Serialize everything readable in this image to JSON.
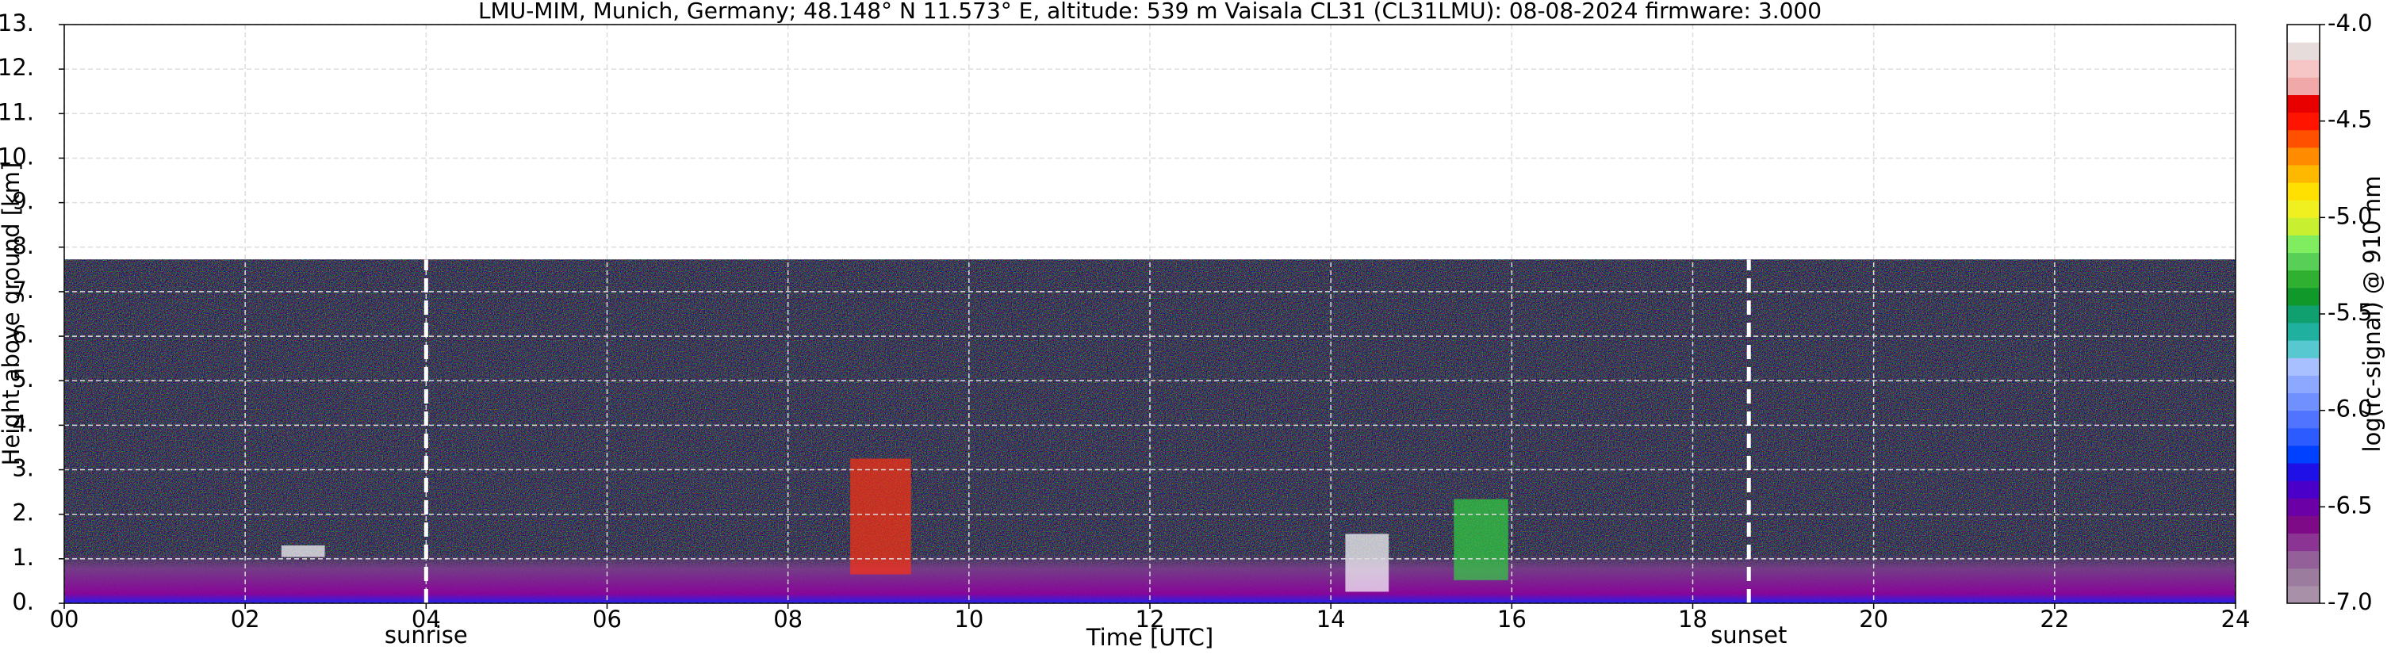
{
  "chart_data": {
    "type": "heatmap",
    "title": "LMU-MIM, Munich, Germany; 48.148° N 11.573° E, altitude: 539 m    Vaisala CL31 (CL31LMU): 08-08-2024    firmware: 3.000",
    "x_label": "Time [UTC]",
    "y_label": "Height above ground [km]",
    "xlim": [
      0,
      24
    ],
    "xticks": [
      {
        "value": 0,
        "label": "00"
      },
      {
        "value": 2,
        "label": "02"
      },
      {
        "value": 4,
        "label": "04"
      },
      {
        "value": 6,
        "label": "06"
      },
      {
        "value": 8,
        "label": "08"
      },
      {
        "value": 10,
        "label": "10"
      },
      {
        "value": 12,
        "label": "12"
      },
      {
        "value": 14,
        "label": "14"
      },
      {
        "value": 16,
        "label": "16"
      },
      {
        "value": 18,
        "label": "18"
      },
      {
        "value": 20,
        "label": "20"
      },
      {
        "value": 22,
        "label": "22"
      },
      {
        "value": 24,
        "label": "24"
      }
    ],
    "ylim": [
      0,
      13
    ],
    "yticks": [
      {
        "value": 0,
        "label": "0."
      },
      {
        "value": 1,
        "label": "1."
      },
      {
        "value": 2,
        "label": "2."
      },
      {
        "value": 3,
        "label": "3."
      },
      {
        "value": 4,
        "label": "4."
      },
      {
        "value": 5,
        "label": "5."
      },
      {
        "value": 6,
        "label": "6."
      },
      {
        "value": 7,
        "label": "7."
      },
      {
        "value": 8,
        "label": "8."
      },
      {
        "value": 9,
        "label": "9."
      },
      {
        "value": 10,
        "label": "10."
      },
      {
        "value": 11,
        "label": "11."
      },
      {
        "value": 12,
        "label": "12."
      },
      {
        "value": 13,
        "label": "13."
      }
    ],
    "grid": true,
    "annotations": [
      {
        "text": "sunrise",
        "x": 4.0
      },
      {
        "text": "sunset",
        "x": 18.62
      }
    ],
    "colorbar": {
      "label": "log(rc-signal) @ 910 nm",
      "clim": [
        -7,
        -4
      ],
      "ticks": [
        {
          "value": -4,
          "label": "-4.0"
        },
        {
          "value": -4.5,
          "label": "-4.5"
        },
        {
          "value": -5,
          "label": "-5.0"
        },
        {
          "value": -5.5,
          "label": "-5.5"
        },
        {
          "value": -6,
          "label": "-6.0"
        },
        {
          "value": -6.5,
          "label": "-6.5"
        },
        {
          "value": -7,
          "label": "-7.0"
        }
      ],
      "colors": [
        "#a890a8",
        "#9c7c9e",
        "#94609a",
        "#8c3494",
        "#7e0a88",
        "#6a00a6",
        "#4a00c8",
        "#2010e8",
        "#0040ff",
        "#2c5cff",
        "#5074ff",
        "#7090ff",
        "#8ca8ff",
        "#a8c0ff",
        "#58c8d0",
        "#20b0a0",
        "#10a070",
        "#10982a",
        "#30b030",
        "#58d058",
        "#80ec60",
        "#c8f030",
        "#f0f020",
        "#ffe000",
        "#ffb800",
        "#ff8c00",
        "#ff5000",
        "#ff1400",
        "#e80000",
        "#f0a8a8",
        "#f6c6c6",
        "#e6dcdc",
        "#ffffff"
      ]
    }
  }
}
